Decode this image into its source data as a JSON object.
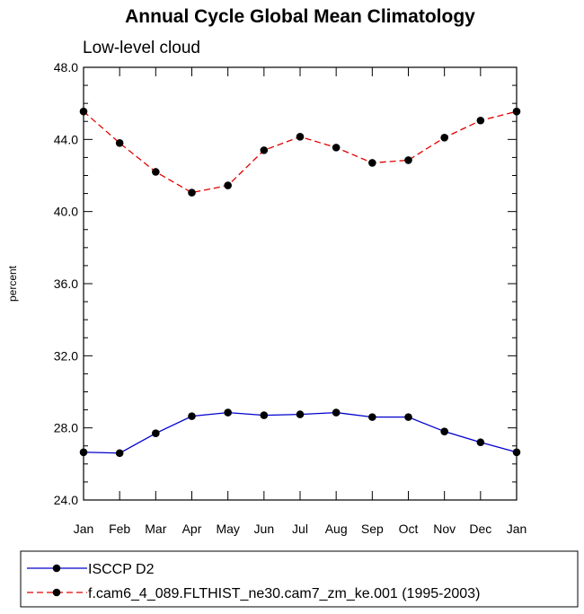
{
  "chart_data": {
    "type": "line",
    "title": "Annual Cycle Global Mean Climatology",
    "subtitle": "Low-level cloud",
    "xlabel": "",
    "ylabel": "percent",
    "categories": [
      "Jan",
      "Feb",
      "Mar",
      "Apr",
      "May",
      "Jun",
      "Jul",
      "Aug",
      "Sep",
      "Oct",
      "Nov",
      "Dec",
      "Jan"
    ],
    "ylim": [
      24.0,
      48.0
    ],
    "yticks": [
      "24.0",
      "28.0",
      "32.0",
      "36.0",
      "40.0",
      "44.0",
      "48.0"
    ],
    "ytick_values": [
      24,
      28,
      32,
      36,
      40,
      44,
      48
    ],
    "series": [
      {
        "name": "ISCCP D2",
        "color": "#0000cc",
        "dash": "solid",
        "values": [
          26.65,
          26.6,
          27.7,
          28.65,
          28.85,
          28.7,
          28.75,
          28.85,
          28.6,
          28.6,
          27.8,
          27.2,
          26.65
        ]
      },
      {
        "name": "f.cam6_4_089.FLTHIST_ne30.cam7_zm_ke.001 (1995-2003)",
        "color": "#e00000",
        "dash": "dashed",
        "values": [
          45.55,
          43.8,
          42.2,
          41.05,
          41.45,
          43.4,
          44.15,
          43.55,
          42.7,
          42.85,
          44.1,
          45.05,
          45.55
        ]
      }
    ]
  }
}
